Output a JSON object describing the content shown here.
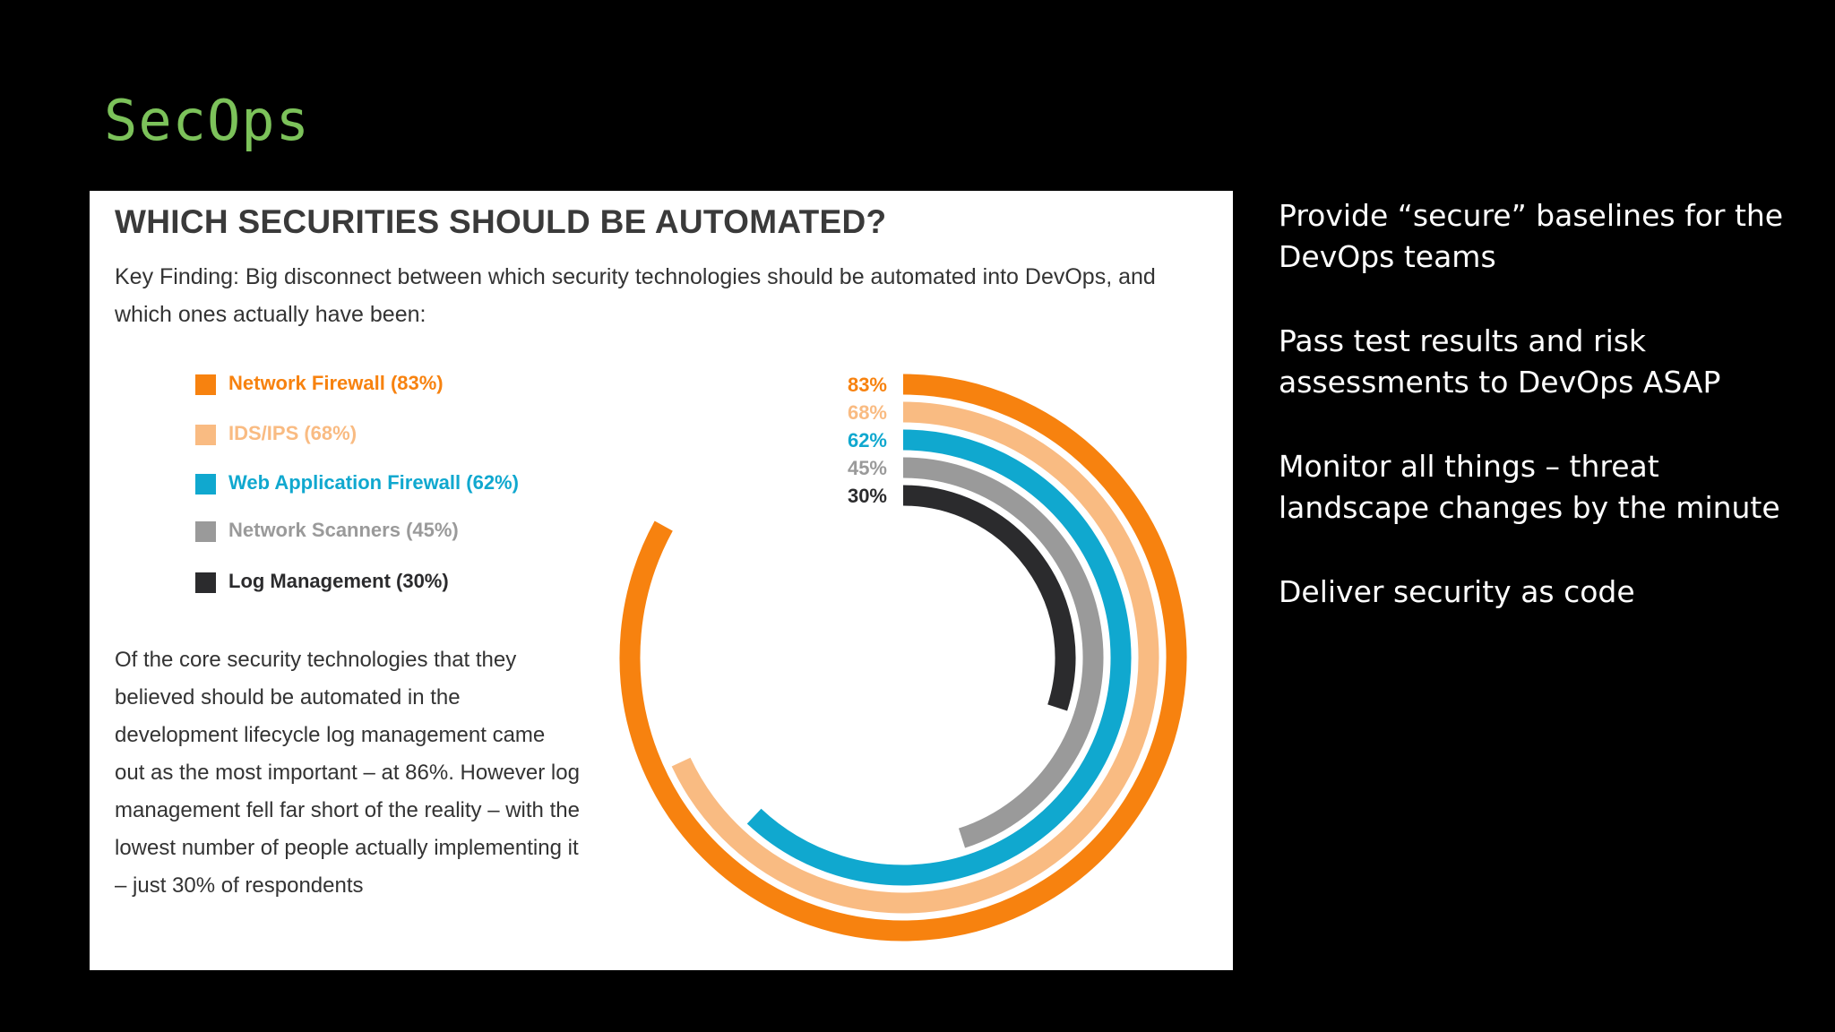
{
  "slide": {
    "title": "SecOps",
    "bullets": [
      "Provide “secure” baselines for the DevOps teams",
      "Pass test results and risk assessments to DevOps ASAP",
      "Monitor all things – threat landscape changes by the minute",
      "Deliver security as code"
    ]
  },
  "infographic": {
    "title": "WHICH SECURITIES SHOULD BE AUTOMATED?",
    "key_finding": "Key Finding: Big disconnect between which security technologies should be automated into DevOps, and which ones actually have been:",
    "body": "Of the core security technologies that they believed should be automated in the development lifecycle log management came out as the most important – at 86%. However log management fell far short of the reality – with the lowest number of people actually implementing it – just 30% of respondents"
  },
  "chart_data": {
    "type": "radial-bar",
    "title": "WHICH SECURITIES SHOULD BE AUTOMATED?",
    "unit": "%",
    "max": 100,
    "series": [
      {
        "name": "Network Firewall (83%)",
        "value": 83,
        "label": "83%",
        "color": "#f7820f"
      },
      {
        "name": "IDS/IPS (68%)",
        "value": 68,
        "label": "68%",
        "color": "#f9bb82"
      },
      {
        "name": "Web Application Firewall (62%)",
        "value": 62,
        "label": "62%",
        "color": "#10a8cf"
      },
      {
        "name": "Network Scanners (45%)",
        "value": 45,
        "label": "45%",
        "color": "#9a9a9a"
      },
      {
        "name": "Log Management (30%)",
        "value": 30,
        "label": "30%",
        "color": "#2b2b2d"
      }
    ]
  }
}
